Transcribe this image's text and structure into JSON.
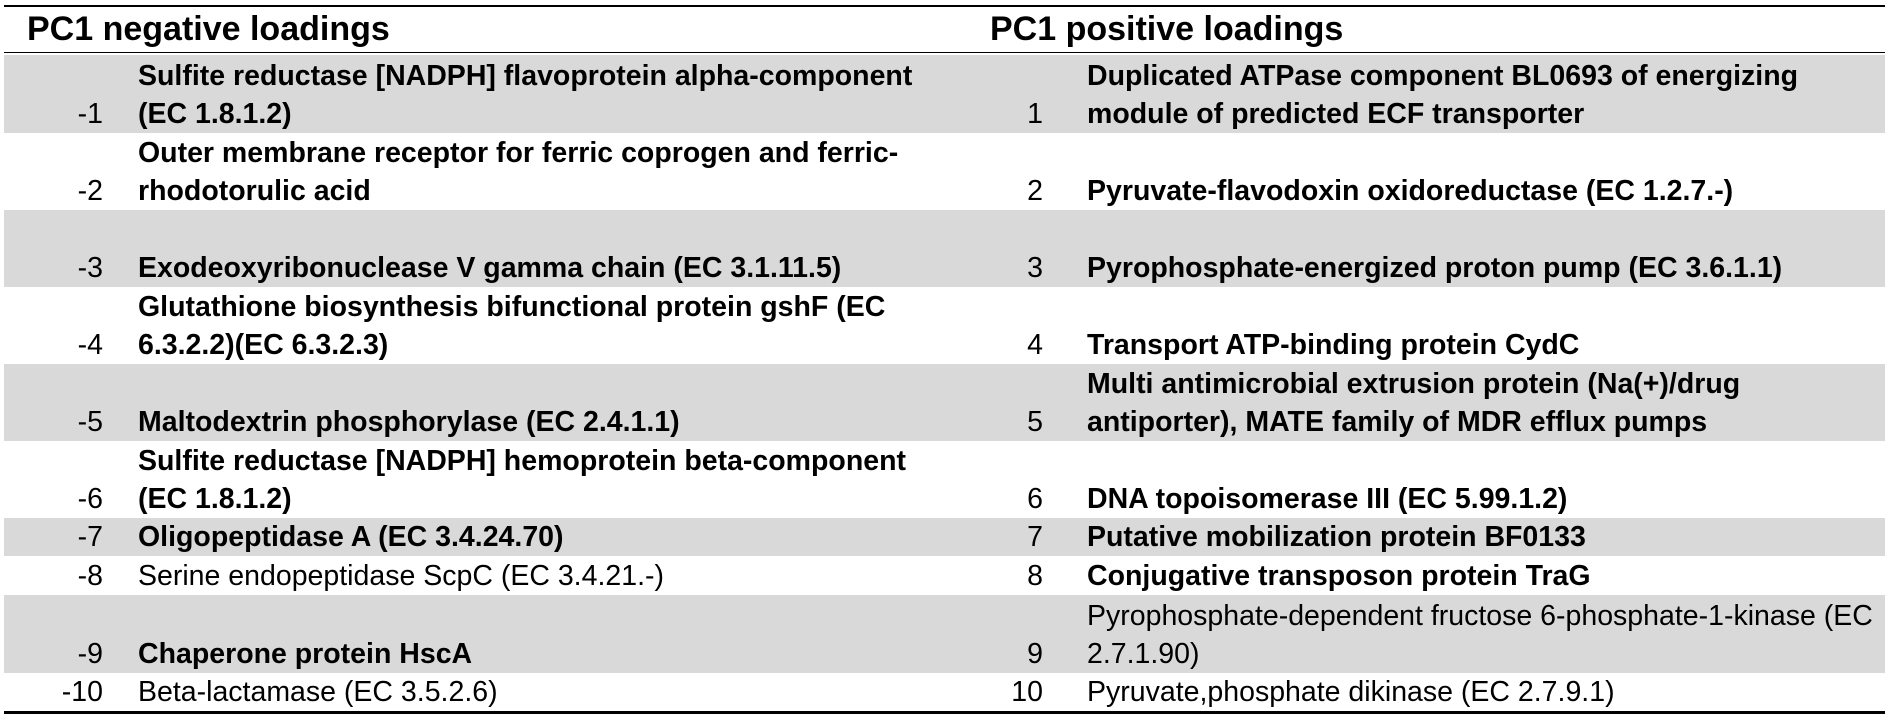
{
  "headers": {
    "negative": "PC1 negative loadings",
    "positive": "PC1 positive loadings"
  },
  "rows": [
    {
      "neg_rank": "-1",
      "neg_name": "Sulfite reductase [NADPH] flavoprotein alpha-component (EC 1.8.1.2)",
      "pos_rank": "1",
      "pos_name": "Duplicated ATPase component BL0693 of energizing module of predicted ECF transporter"
    },
    {
      "neg_rank": "-2",
      "neg_name": "Outer membrane receptor for ferric coprogen and ferric-rhodotorulic acid",
      "pos_rank": "2",
      "pos_name": "Pyruvate-flavodoxin oxidoreductase (EC 1.2.7.-)"
    },
    {
      "neg_rank": "-3",
      "neg_name": "Exodeoxyribonuclease V gamma chain (EC 3.1.11.5)",
      "pos_rank": "3",
      "pos_name": "Pyrophosphate-energized proton pump (EC 3.6.1.1)"
    },
    {
      "neg_rank": "-4",
      "neg_name": "Glutathione biosynthesis bifunctional protein gshF (EC 6.3.2.2)(EC 6.3.2.3)",
      "pos_rank": "4",
      "pos_name": "Transport ATP-binding protein CydC"
    },
    {
      "neg_rank": "-5",
      "neg_name": "Maltodextrin phosphorylase (EC 2.4.1.1)",
      "pos_rank": "5",
      "pos_name": "Multi antimicrobial extrusion protein (Na(+)/drug antiporter), MATE family of MDR efflux pumps"
    },
    {
      "neg_rank": "-6",
      "neg_name": "Sulfite reductase [NADPH] hemoprotein beta-component (EC 1.8.1.2)",
      "pos_rank": "6",
      "pos_name": "DNA topoisomerase III (EC 5.99.1.2)"
    },
    {
      "neg_rank": "-7",
      "neg_name": "Oligopeptidase A (EC 3.4.24.70)",
      "pos_rank": "7",
      "pos_name": "Putative mobilization protein BF0133"
    },
    {
      "neg_rank": "-8",
      "neg_name": "Serine endopeptidase ScpC (EC 3.4.21.-)",
      "pos_rank": "8",
      "pos_name": "Conjugative transposon protein TraG"
    },
    {
      "neg_rank": "-9",
      "neg_name": "Chaperone protein HscA",
      "pos_rank": "9",
      "pos_name": "Pyrophosphate-dependent fructose 6-phosphate-1-kinase (EC 2.7.1.90)"
    },
    {
      "neg_rank": "-10",
      "neg_name": "Beta-lactamase (EC 3.5.2.6)",
      "pos_rank": "10",
      "pos_name": "Pyruvate,phosphate dikinase (EC 2.7.9.1)"
    }
  ]
}
